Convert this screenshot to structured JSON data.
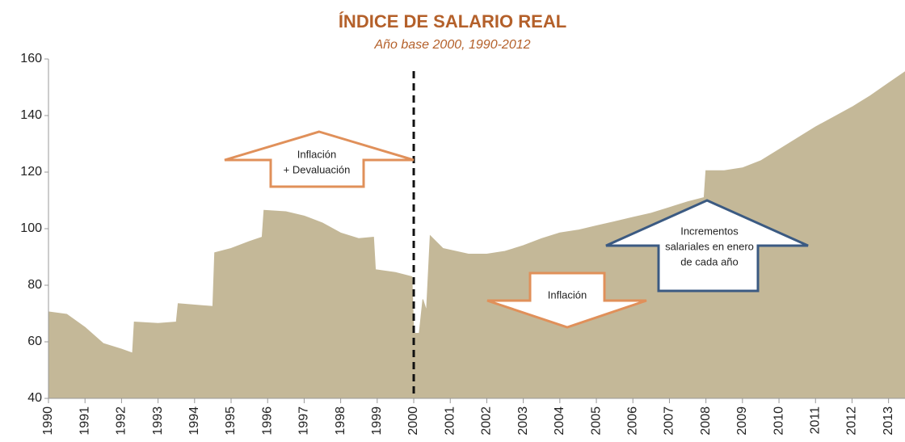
{
  "chart_data": {
    "type": "area",
    "title": "ÍNDICE DE SALARIO REAL",
    "subtitle": "Año base 2000, 1990-2012",
    "color": "#c4b898",
    "x": [
      1990.0,
      1990.5,
      1991.0,
      1991.5,
      1992.0,
      1992.3,
      1992.35,
      1993.0,
      1993.5,
      1993.55,
      1994.5,
      1994.55,
      1995.0,
      1995.5,
      1995.85,
      1995.9,
      1996.5,
      1997.0,
      1997.5,
      1998.0,
      1998.5,
      1998.9,
      1998.95,
      1999.5,
      1999.95,
      2000.0,
      2000.15,
      2000.25,
      2000.35,
      2000.45,
      2000.8,
      2001.5,
      2002.0,
      2002.5,
      2003.0,
      2003.5,
      2004.0,
      2004.5,
      2005.0,
      2005.5,
      2006.0,
      2006.5,
      2007.0,
      2007.5,
      2007.95,
      2008.0,
      2008.5,
      2009.0,
      2009.5,
      2010.0,
      2010.5,
      2011.0,
      2011.5,
      2012.0,
      2012.5,
      2013.0,
      2013.45
    ],
    "values": [
      70.6,
      69.7,
      65.1,
      59.4,
      57.4,
      56,
      67,
      66.5,
      67,
      73.5,
      72.5,
      91.5,
      93,
      95.5,
      97,
      106.5,
      106,
      104.5,
      102,
      98.5,
      96.5,
      97,
      85.5,
      84.5,
      83,
      63,
      63,
      75,
      71,
      97.5,
      93,
      91,
      91,
      92,
      94,
      96.5,
      98.5,
      99.5,
      101,
      102.5,
      104,
      105.5,
      107.5,
      109.5,
      111,
      120.5,
      120.5,
      121.5,
      124,
      128,
      132,
      136,
      139.5,
      143,
      147,
      151.5,
      155.5
    ],
    "xlim": [
      1990,
      2013.45
    ],
    "xticks": [
      1990,
      1991,
      1992,
      1993,
      1994,
      1995,
      1996,
      1997,
      1998,
      1999,
      2000,
      2001,
      2002,
      2003,
      2004,
      2005,
      2006,
      2007,
      2008,
      2009,
      2010,
      2011,
      2012,
      2013
    ],
    "ylim": [
      40,
      160
    ],
    "yticks": [
      40,
      60,
      80,
      100,
      120,
      140,
      160
    ],
    "vline_x": 2000,
    "annotations": [
      {
        "lines": [
          "Inflación",
          "+ Devaluación"
        ]
      },
      {
        "lines": [
          "Inflación"
        ]
      },
      {
        "lines": [
          "Incrementos",
          "salariales en enero",
          "de cada año"
        ]
      }
    ]
  }
}
